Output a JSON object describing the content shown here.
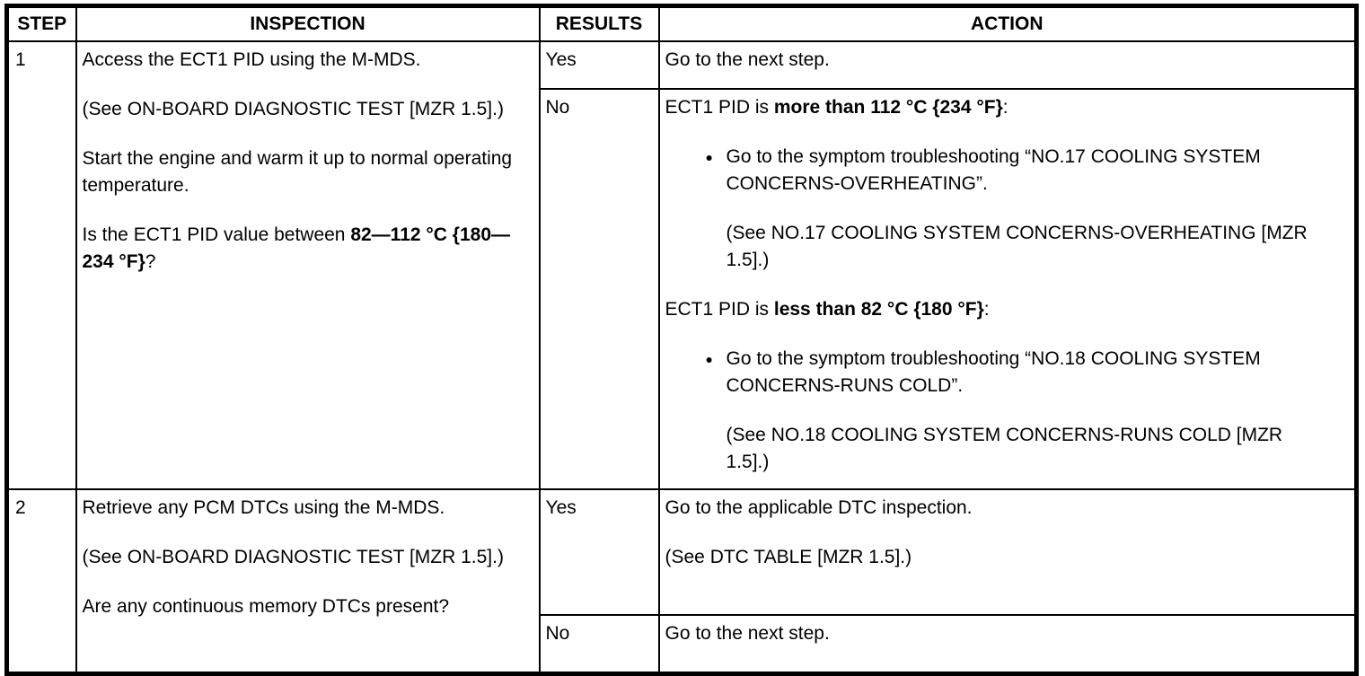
{
  "colors": {
    "border": "#000000",
    "text": "#000000",
    "background": "#ffffff"
  },
  "bullet_glyph": "●",
  "header": {
    "step": "STEP",
    "inspection": "INSPECTION",
    "results": "RESULTS",
    "action": "ACTION"
  },
  "rows": [
    {
      "step": "1",
      "inspection": [
        {
          "type": "p",
          "segments": [
            {
              "t": "Access the ECT1 PID using the M-MDS."
            }
          ]
        },
        {
          "type": "p",
          "segments": [
            {
              "t": "(See ON-BOARD DIAGNOSTIC TEST [MZR 1.5].)"
            }
          ]
        },
        {
          "type": "p",
          "segments": [
            {
              "t": "Start the engine and warm it up to normal operating temperature."
            }
          ]
        },
        {
          "type": "p",
          "segments": [
            {
              "t": "Is the ECT1 PID value between "
            },
            {
              "t": "82—112 °C {180—234 °F}",
              "b": true
            },
            {
              "t": "?"
            }
          ]
        }
      ],
      "branches": [
        {
          "result": "Yes",
          "action": [
            {
              "type": "p",
              "segments": [
                {
                  "t": "Go to the next step."
                }
              ]
            }
          ]
        },
        {
          "result": "No",
          "action": [
            {
              "type": "p",
              "segments": [
                {
                  "t": "ECT1 PID is "
                },
                {
                  "t": "more than 112 °C {234 °F}",
                  "b": true
                },
                {
                  "t": ":"
                }
              ]
            },
            {
              "type": "bullet",
              "segments": [
                {
                  "t": "Go to the symptom troubleshooting “NO.17 COOLING SYSTEM CONCERNS-OVERHEATING”."
                }
              ]
            },
            {
              "type": "note",
              "segments": [
                {
                  "t": "(See NO.17 COOLING SYSTEM CONCERNS-OVERHEATING [MZR 1.5].)"
                }
              ]
            },
            {
              "type": "p",
              "segments": [
                {
                  "t": "ECT1 PID is "
                },
                {
                  "t": "less than 82 °C {180 °F}",
                  "b": true
                },
                {
                  "t": ":"
                }
              ]
            },
            {
              "type": "bullet",
              "segments": [
                {
                  "t": "Go to the symptom troubleshooting “NO.18 COOLING SYSTEM CONCERNS-RUNS COLD”."
                }
              ]
            },
            {
              "type": "note",
              "segments": [
                {
                  "t": "(See NO.18 COOLING SYSTEM CONCERNS-RUNS COLD [MZR 1.5].)"
                }
              ]
            }
          ]
        }
      ]
    },
    {
      "step": "2",
      "inspection": [
        {
          "type": "p",
          "segments": [
            {
              "t": "Retrieve any PCM DTCs using the M-MDS."
            }
          ]
        },
        {
          "type": "p",
          "segments": [
            {
              "t": "(See ON-BOARD DIAGNOSTIC TEST [MZR 1.5].)"
            }
          ]
        },
        {
          "type": "p",
          "segments": [
            {
              "t": "Are any continuous memory DTCs present?"
            }
          ]
        }
      ],
      "branches": [
        {
          "result": "Yes",
          "action": [
            {
              "type": "p",
              "segments": [
                {
                  "t": "Go to the applicable DTC inspection."
                }
              ]
            },
            {
              "type": "p",
              "segments": [
                {
                  "t": "(See DTC TABLE [MZR 1.5].)"
                }
              ]
            }
          ]
        },
        {
          "result": "No",
          "action": [
            {
              "type": "p",
              "segments": [
                {
                  "t": "Go to the next step."
                }
              ]
            }
          ]
        }
      ]
    }
  ]
}
